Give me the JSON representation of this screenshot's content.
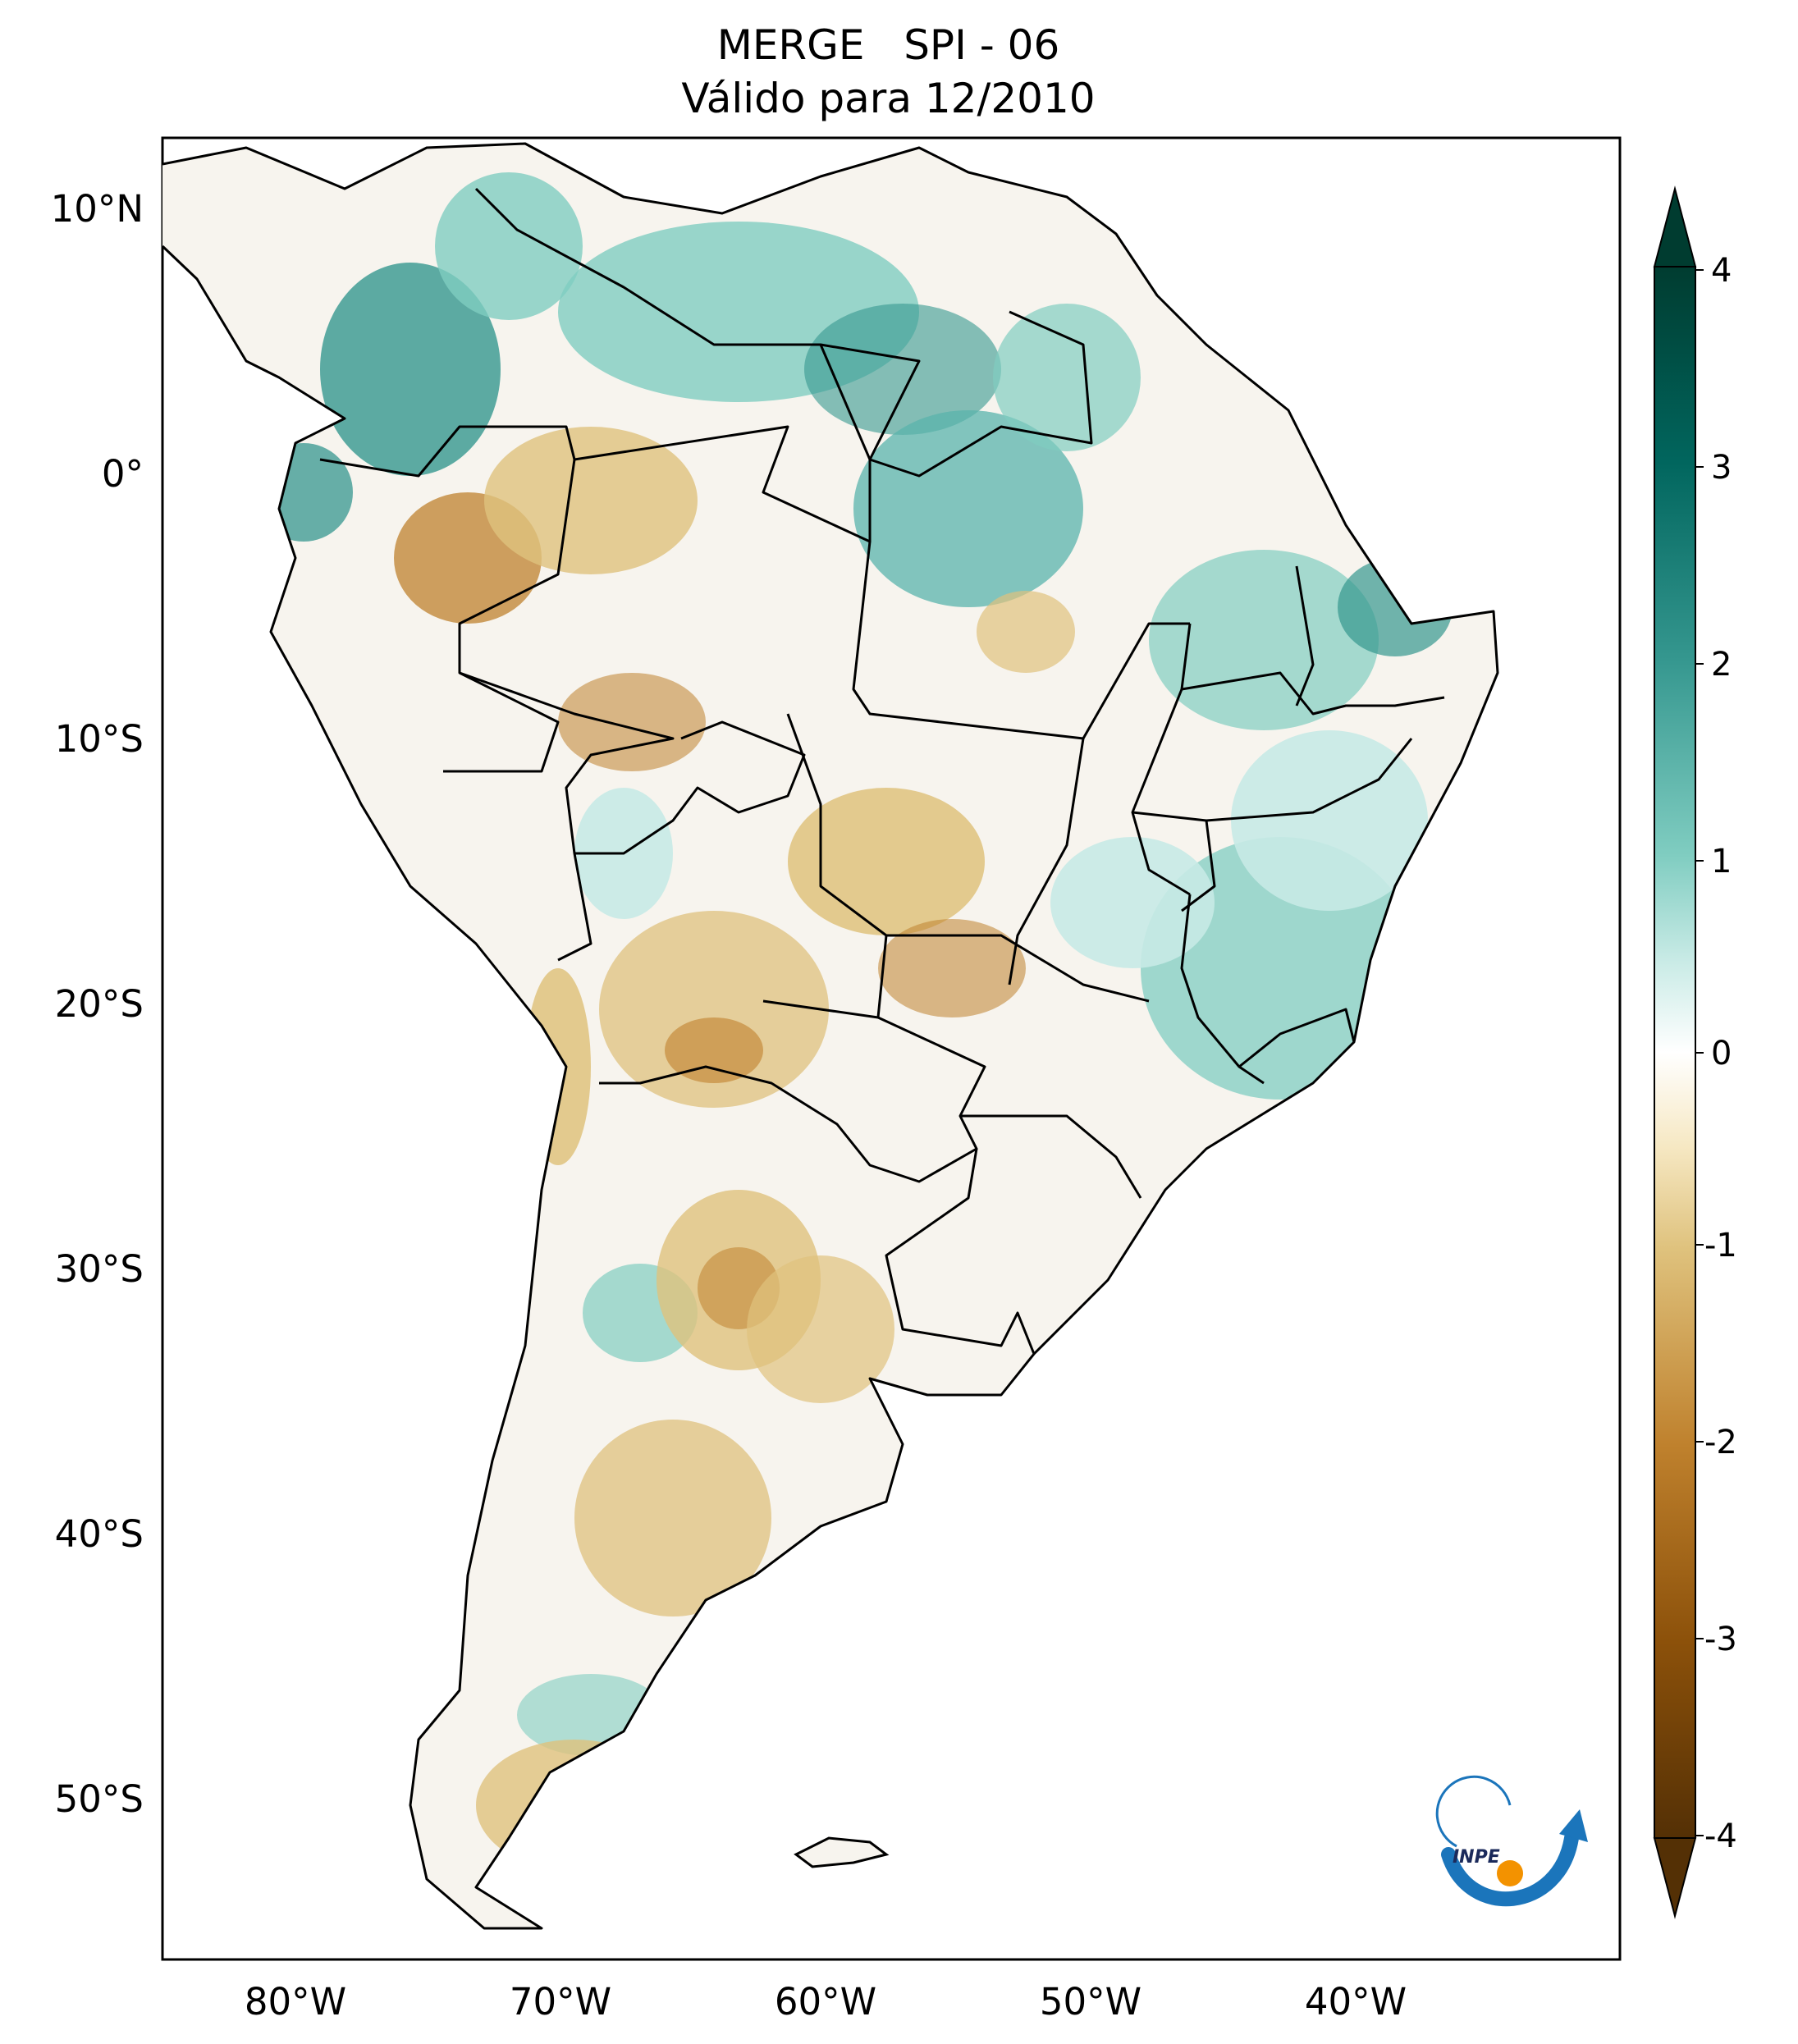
{
  "title": {
    "line1": "MERGE   SPI - 06",
    "line2": "Válido para 12/2010"
  },
  "map": {
    "region": "South America",
    "lon_range": [
      -85,
      -29
    ],
    "lat_range": [
      -56,
      13
    ],
    "lat_ticks": [
      "10°N",
      "0°",
      "10°S",
      "20°S",
      "30°S",
      "40°S",
      "50°S"
    ],
    "lon_ticks": [
      "80°W",
      "70°W",
      "60°W",
      "50°W",
      "40°W"
    ]
  },
  "colorbar": {
    "variable": "SPI",
    "range": [
      -4,
      4
    ],
    "extend": "both",
    "colormap": "BrBG",
    "colors": {
      "dry_extreme": "#543005",
      "dry": "#bf812d",
      "dry_light": "#f6e8c3",
      "neutral": "#f5f5f5",
      "wet_light": "#c7eae5",
      "wet": "#35978f",
      "wet_extreme": "#003c30"
    },
    "ticks": [
      "4",
      "3",
      "2",
      "1",
      "0",
      "-1",
      "-2",
      "-3",
      "-4"
    ]
  },
  "logo": {
    "text": "INPE",
    "colors": {
      "arc": "#1b75bb",
      "dot": "#f39200"
    }
  }
}
